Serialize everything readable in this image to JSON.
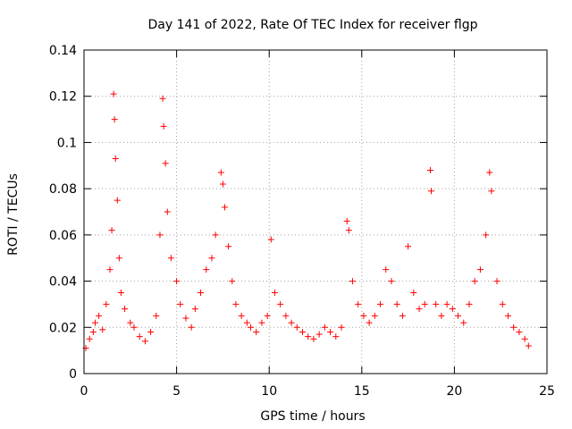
{
  "chart_data": {
    "type": "scatter",
    "title": "Day 141 of 2022, Rate Of TEC Index for receiver flgp",
    "xlabel": "GPS time / hours",
    "ylabel": "ROTI / TECUs",
    "xlim": [
      0,
      25
    ],
    "ylim": [
      0,
      0.14
    ],
    "xticks": [
      0,
      5,
      10,
      15,
      20,
      25
    ],
    "yticks": [
      0,
      0.02,
      0.04,
      0.06,
      0.08,
      0.1,
      0.12,
      0.14
    ],
    "xtick_labels": [
      "0",
      "5",
      "10",
      "15",
      "20",
      "25"
    ],
    "ytick_labels": [
      "0",
      "0.02",
      "0.04",
      "0.06",
      "0.08",
      "0.1",
      "0.12",
      "0.14"
    ],
    "grid": true,
    "marker": "+",
    "color": "#ff0000",
    "series": [
      {
        "name": "ROTI",
        "x": [
          0.1,
          0.3,
          0.5,
          0.6,
          0.8,
          1.0,
          1.2,
          1.4,
          1.5,
          1.6,
          1.65,
          1.7,
          1.8,
          1.9,
          2.0,
          2.2,
          2.5,
          2.7,
          3.0,
          3.3,
          3.6,
          3.9,
          4.1,
          4.25,
          4.3,
          4.4,
          4.5,
          4.7,
          5.0,
          5.2,
          5.5,
          5.8,
          6.0,
          6.3,
          6.6,
          6.9,
          7.1,
          7.4,
          7.5,
          7.6,
          7.8,
          8.0,
          8.2,
          8.5,
          8.8,
          9.0,
          9.3,
          9.6,
          9.9,
          10.1,
          10.3,
          10.6,
          10.9,
          11.2,
          11.5,
          11.8,
          12.1,
          12.4,
          12.7,
          13.0,
          13.3,
          13.6,
          13.9,
          14.2,
          14.3,
          14.5,
          14.8,
          15.1,
          15.4,
          15.7,
          16.0,
          16.3,
          16.6,
          16.9,
          17.2,
          17.5,
          17.8,
          18.1,
          18.4,
          18.7,
          18.75,
          19.0,
          19.3,
          19.6,
          19.9,
          20.2,
          20.5,
          20.8,
          21.1,
          21.4,
          21.7,
          21.9,
          22.0,
          22.3,
          22.6,
          22.9,
          23.2,
          23.5,
          23.8,
          24.0
        ],
        "y": [
          0.011,
          0.015,
          0.018,
          0.022,
          0.025,
          0.019,
          0.03,
          0.045,
          0.062,
          0.121,
          0.11,
          0.093,
          0.075,
          0.05,
          0.035,
          0.028,
          0.022,
          0.02,
          0.016,
          0.014,
          0.018,
          0.025,
          0.06,
          0.119,
          0.107,
          0.091,
          0.07,
          0.05,
          0.04,
          0.03,
          0.024,
          0.02,
          0.028,
          0.035,
          0.045,
          0.05,
          0.06,
          0.087,
          0.082,
          0.072,
          0.055,
          0.04,
          0.03,
          0.025,
          0.022,
          0.02,
          0.018,
          0.022,
          0.025,
          0.058,
          0.035,
          0.03,
          0.025,
          0.022,
          0.02,
          0.018,
          0.016,
          0.015,
          0.017,
          0.02,
          0.018,
          0.016,
          0.02,
          0.066,
          0.062,
          0.04,
          0.03,
          0.025,
          0.022,
          0.025,
          0.03,
          0.045,
          0.04,
          0.03,
          0.025,
          0.055,
          0.035,
          0.028,
          0.03,
          0.088,
          0.079,
          0.03,
          0.025,
          0.03,
          0.028,
          0.025,
          0.022,
          0.03,
          0.04,
          0.045,
          0.06,
          0.087,
          0.079,
          0.04,
          0.03,
          0.025,
          0.02,
          0.018,
          0.015,
          0.012
        ]
      }
    ]
  }
}
